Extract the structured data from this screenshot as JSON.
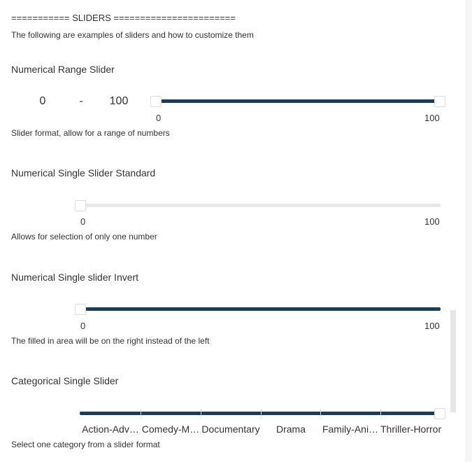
{
  "header": "=========== SLIDERS =======================",
  "intro": "The following are examples of sliders and how to customize them",
  "range_slider": {
    "title": "Numerical Range Slider",
    "min_value": "0",
    "separator": "-",
    "max_value": "100",
    "min_label": "0",
    "max_label": "100",
    "low": 0,
    "high": 100,
    "description": "Slider format, allow for a range of numbers"
  },
  "single_standard": {
    "title": "Numerical Single Slider Standard",
    "min_label": "0",
    "max_label": "100",
    "value": 0,
    "description": "Allows for selection of only one number"
  },
  "single_invert": {
    "title": "Numerical Single slider Invert",
    "min_label": "0",
    "max_label": "100",
    "value": 0,
    "description": "The filled in area will be on the right instead of the left"
  },
  "categorical": {
    "title": "Categorical Single Slider",
    "categories": [
      "Action-Adv…",
      "Comedy-M…",
      "Documentary",
      "Drama",
      "Family-Ani…",
      "Thriller-Horror"
    ],
    "selected_index": 5,
    "description": "Select one category from a slider format"
  },
  "colors": {
    "accent": "#1c3d5a",
    "track_empty": "#e8e8e8"
  }
}
